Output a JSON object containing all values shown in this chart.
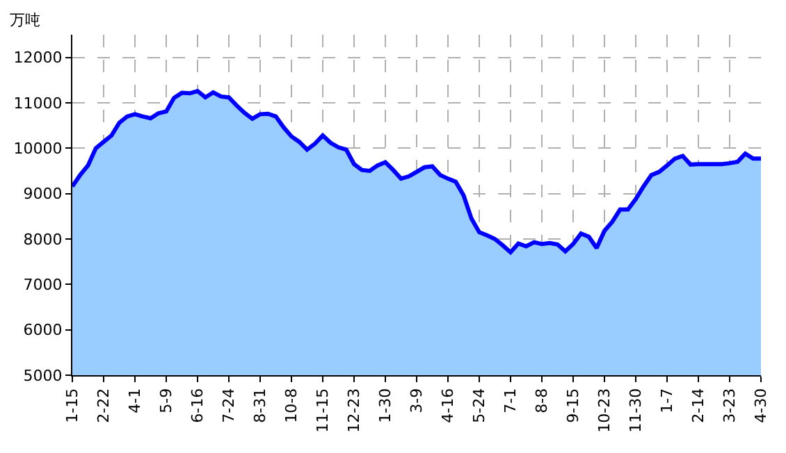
{
  "chart_data": {
    "type": "area",
    "ylabel": "万吨",
    "categories": [
      "1-15",
      null,
      null,
      null,
      "2-22",
      null,
      null,
      null,
      "4-1",
      null,
      null,
      null,
      "5-9",
      null,
      null,
      null,
      "6-16",
      null,
      null,
      null,
      "7-24",
      null,
      null,
      null,
      "8-31",
      null,
      null,
      null,
      "10-8",
      null,
      null,
      null,
      "11-15",
      null,
      null,
      null,
      "12-23",
      null,
      null,
      null,
      "1-30",
      null,
      null,
      null,
      "3-9",
      null,
      null,
      null,
      "4-16",
      null,
      null,
      null,
      "5-24",
      null,
      null,
      null,
      "7-1",
      null,
      null,
      null,
      "8-8",
      null,
      null,
      null,
      "9-15",
      null,
      null,
      null,
      "10-23",
      null,
      null,
      null,
      "11-30",
      null,
      null,
      null,
      "1-7",
      null,
      null,
      null,
      "2-14",
      null,
      null,
      null,
      "3-23",
      null,
      null,
      null,
      "4-30"
    ],
    "series": [
      {
        "color": "#0000ff",
        "values": [
          9160,
          9410,
          9620,
          10000,
          10140,
          10280,
          10560,
          10700,
          10750,
          10700,
          10660,
          10770,
          10810,
          11110,
          11220,
          11210,
          11260,
          11120,
          11230,
          11140,
          11120,
          10940,
          10780,
          10650,
          10750,
          10760,
          10700,
          10460,
          10260,
          10140,
          9970,
          10100,
          10280,
          10120,
          10020,
          9970,
          9650,
          9520,
          9500,
          9620,
          9690,
          9520,
          9330,
          9380,
          9480,
          9580,
          9600,
          9410,
          9330,
          9260,
          8960,
          8450,
          8150,
          8080,
          8000,
          7860,
          7710,
          7900,
          7840,
          7930,
          7890,
          7910,
          7880,
          7730,
          7890,
          8120,
          8050,
          7800,
          8180,
          8380,
          8650,
          8650,
          8880,
          9160,
          9410,
          9480,
          9620,
          9770,
          9830,
          9640,
          9650,
          9650,
          9650,
          9650,
          9670,
          9700,
          9880,
          9770,
          9770
        ]
      }
    ],
    "ylim": [
      5000,
      12500
    ],
    "yticks": [
      5000,
      6000,
      7000,
      8000,
      9000,
      10000,
      11000,
      12000
    ],
    "grid": true
  }
}
